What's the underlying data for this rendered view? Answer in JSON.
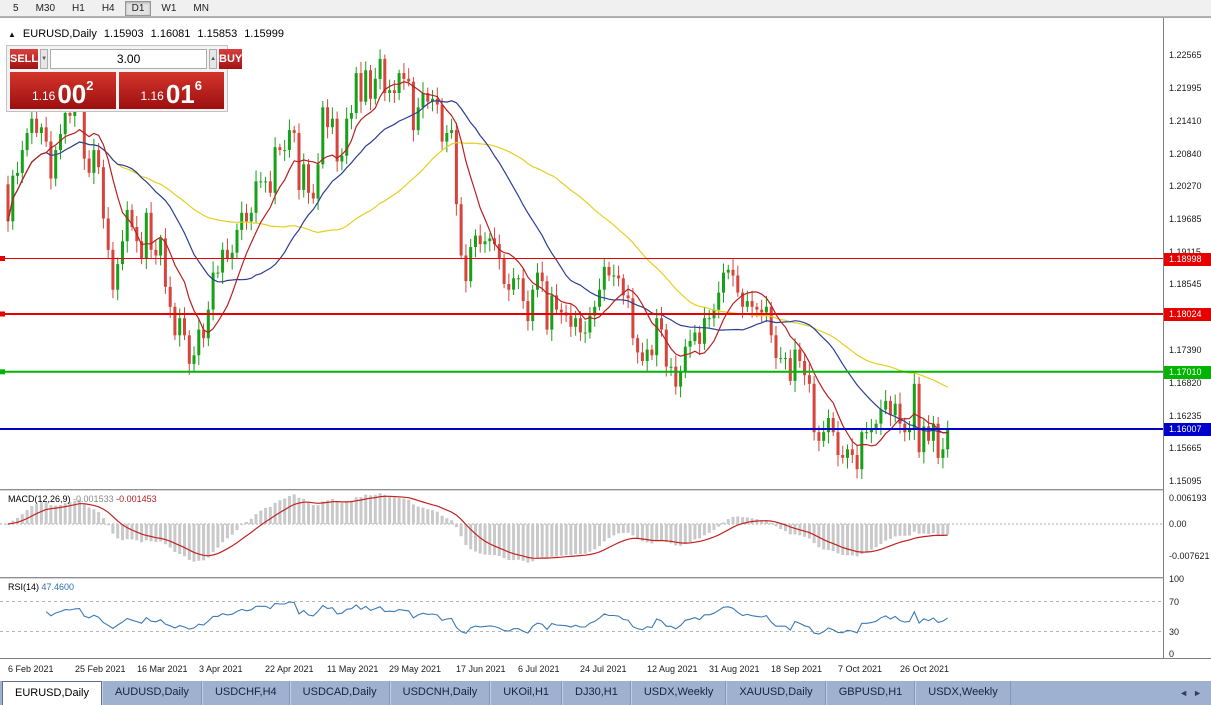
{
  "toolbar": {
    "timeframes": [
      "5",
      "M30",
      "H1",
      "H4",
      "D1",
      "W1",
      "MN"
    ],
    "active": "D1"
  },
  "chart": {
    "title": "EURUSD,Daily",
    "ohlc": {
      "open": "1.15903",
      "high": "1.16081",
      "low": "1.15853",
      "close": "1.15999"
    },
    "trade_panel": {
      "sell_label": "SELL",
      "buy_label": "BUY",
      "volume": "3.00",
      "sell_price": {
        "prefix": "1.16",
        "big": "00",
        "sup": "2"
      },
      "buy_price": {
        "prefix": "1.16",
        "big": "01",
        "sup": "6"
      }
    }
  },
  "chart_data": {
    "type": "candlestick",
    "symbol": "EURUSD",
    "timeframe": "Daily",
    "candle_colors": {
      "up": "#18a018",
      "down": "#d6443c"
    },
    "closes": [
      1.1965,
      1.2045,
      1.205,
      1.209,
      1.212,
      1.2145,
      1.212,
      1.213,
      1.2105,
      1.204,
      1.209,
      1.2118,
      1.2155,
      1.215,
      1.217,
      1.2175,
      1.2075,
      1.205,
      1.209,
      1.206,
      1.197,
      1.1915,
      1.1845,
      1.189,
      1.193,
      1.1985,
      1.1955,
      1.193,
      1.19,
      1.198,
      1.1915,
      1.1905,
      1.1935,
      1.185,
      1.1815,
      1.1765,
      1.1795,
      1.1765,
      1.1715,
      1.173,
      1.1775,
      1.176,
      1.181,
      1.1875,
      1.1875,
      1.1915,
      1.19,
      1.191,
      1.195,
      1.198,
      1.1965,
      1.198,
      1.2035,
      1.2035,
      1.2035,
      1.2015,
      1.2095,
      1.209,
      1.209,
      1.2125,
      1.212,
      1.202,
      1.2065,
      1.2015,
      1.2005,
      1.2065,
      1.2165,
      1.213,
      1.2145,
      1.207,
      1.208,
      1.2145,
      1.2155,
      1.2225,
      1.2175,
      1.223,
      1.218,
      1.2215,
      1.225,
      1.219,
      1.2195,
      1.219,
      1.2225,
      1.2215,
      1.221,
      1.2125,
      1.2165,
      1.219,
      1.2175,
      1.218,
      1.217,
      1.2105,
      1.212,
      1.2125,
      1.1995,
      1.1905,
      1.186,
      1.192,
      1.194,
      1.1925,
      1.193,
      1.1935,
      1.1925,
      1.19,
      1.1855,
      1.1845,
      1.1865,
      1.1865,
      1.1825,
      1.179,
      1.1845,
      1.1875,
      1.186,
      1.1775,
      1.1835,
      1.181,
      1.1805,
      1.18,
      1.178,
      1.1795,
      1.177,
      1.177,
      1.18,
      1.1815,
      1.1845,
      1.1885,
      1.187,
      1.187,
      1.1865,
      1.1835,
      1.183,
      1.176,
      1.1735,
      1.172,
      1.174,
      1.173,
      1.1795,
      1.1775,
      1.171,
      1.171,
      1.1675,
      1.17,
      1.1745,
      1.1755,
      1.177,
      1.175,
      1.1795,
      1.1795,
      1.181,
      1.184,
      1.1875,
      1.188,
      1.187,
      1.184,
      1.1815,
      1.1825,
      1.1815,
      1.181,
      1.1805,
      1.1815,
      1.1765,
      1.1725,
      1.1725,
      1.1725,
      1.1685,
      1.174,
      1.172,
      1.1695,
      1.168,
      1.1595,
      1.158,
      1.1595,
      1.162,
      1.1595,
      1.1555,
      1.155,
      1.1565,
      1.1555,
      1.153,
      1.1595,
      1.1595,
      1.16,
      1.161,
      1.1635,
      1.165,
      1.1625,
      1.1645,
      1.161,
      1.1595,
      1.16,
      1.168,
      1.156,
      1.1605,
      1.158,
      1.161,
      1.155,
      1.1565,
      1.16
    ],
    "moving_averages": [
      {
        "name": "slow-ma",
        "period": 50,
        "color": "#e6cf1f"
      },
      {
        "name": "medium-ma",
        "period": 24,
        "color": "#2c3e94"
      },
      {
        "name": "fast-ma",
        "period": 9,
        "color": "#b82020"
      }
    ],
    "hlines": [
      {
        "price": 1.18998,
        "label": "1.18998",
        "color": "#e60000",
        "width": 1,
        "marker": true
      },
      {
        "price": 1.18024,
        "label": "1.18024",
        "color": "#e60000",
        "width": 2,
        "marker": true
      },
      {
        "price": 1.1701,
        "label": "1.17010",
        "color": "#00b400",
        "width": 2,
        "marker": true
      },
      {
        "price": 1.16007,
        "label": "1.16007",
        "color": "#0000cd",
        "width": 2,
        "marker": false
      }
    ],
    "price_axis_ticks": [
      "1.22565",
      "1.21995",
      "1.21410",
      "1.20840",
      "1.20270",
      "1.19685",
      "1.19115",
      "1.18545",
      "1.17390",
      "1.16820",
      "1.16235",
      "1.15665",
      "1.15095"
    ],
    "x_labels": [
      {
        "text": "6 Feb 2021",
        "bar": 1
      },
      {
        "text": "25 Feb 2021",
        "bar": 15
      },
      {
        "text": "16 Mar 2021",
        "bar": 28
      },
      {
        "text": "3 Apr 2021",
        "bar": 41
      },
      {
        "text": "22 Apr 2021",
        "bar": 55
      },
      {
        "text": "11 May 2021",
        "bar": 68
      },
      {
        "text": "29 May 2021",
        "bar": 81
      },
      {
        "text": "17 Jun 2021",
        "bar": 95
      },
      {
        "text": "6 Jul 2021",
        "bar": 108
      },
      {
        "text": "24 Jul 2021",
        "bar": 121
      },
      {
        "text": "12 Aug 2021",
        "bar": 135
      },
      {
        "text": "31 Aug 2021",
        "bar": 148
      },
      {
        "text": "18 Sep 2021",
        "bar": 161
      },
      {
        "text": "7 Oct 2021",
        "bar": 175
      },
      {
        "text": "26 Oct 2021",
        "bar": 188
      }
    ],
    "indicators": {
      "macd": {
        "label": "MACD(12,26,9)",
        "value": "-0.001533",
        "signal_value": "-0.001453",
        "axis_labels": [
          "0.006193",
          "0.00",
          "-0.007621"
        ],
        "histogram_color": "#c9c9c9",
        "signal_color": "#c32222",
        "fast": 12,
        "slow": 26,
        "signal": 9
      },
      "rsi": {
        "label": "RSI(14)",
        "value": "47.4600",
        "axis_labels": [
          "100",
          "70",
          "30",
          "0"
        ],
        "levels": [
          70,
          30
        ],
        "line_color": "#3a7ab8",
        "period": 14
      }
    }
  },
  "tabs": [
    {
      "label": "EURUSD,Daily",
      "active": true
    },
    {
      "label": "AUDUSD,Daily",
      "active": false
    },
    {
      "label": "USDCHF,H4",
      "active": false
    },
    {
      "label": "USDCAD,Daily",
      "active": false
    },
    {
      "label": "USDCNH,Daily",
      "active": false
    },
    {
      "label": "UKOil,H1",
      "active": false
    },
    {
      "label": "DJ30,H1",
      "active": false
    },
    {
      "label": "USDX,Weekly",
      "active": false
    },
    {
      "label": "XAUUSD,Daily",
      "active": false
    },
    {
      "label": "GBPUSD,H1",
      "active": false
    },
    {
      "label": "USDX,Weekly",
      "active": false
    }
  ]
}
